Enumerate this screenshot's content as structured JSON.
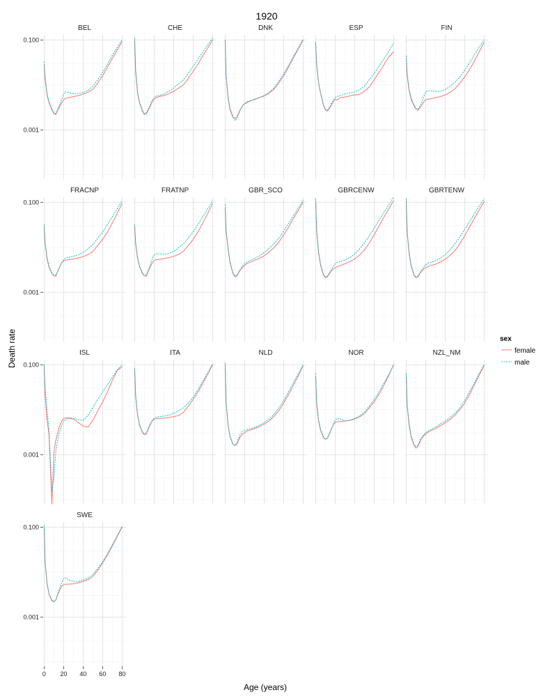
{
  "chart_data": {
    "type": "line",
    "title": "1920",
    "xlabel": "Age (years)",
    "ylabel": "Death rate",
    "yscale": "log10",
    "ylim": [
      8e-05,
      0.13
    ],
    "xlim": [
      -1,
      84
    ],
    "x_ticks": [
      0,
      20,
      40,
      60,
      80
    ],
    "x_tick_labels": [
      "0",
      "20",
      "40",
      "60",
      "80"
    ],
    "y_ticks": [
      0.001,
      0.1
    ],
    "y_tick_labels": [
      "0.001",
      "0.100"
    ],
    "grid": true,
    "legend": {
      "title": "sex",
      "position": "right",
      "entries": [
        {
          "label": "female",
          "color": "#F8766D",
          "dash": "solid"
        },
        {
          "label": "male",
          "color": "#00BFC4",
          "dash": "dotted"
        }
      ]
    },
    "x_knots": [
      0,
      1,
      3,
      5,
      8,
      10,
      12,
      15,
      18,
      20,
      22,
      25,
      30,
      35,
      40,
      45,
      50,
      55,
      60,
      65,
      70,
      75,
      80
    ],
    "panels": [
      {
        "name": "BEL",
        "female": [
          0.028,
          0.013,
          0.006,
          0.004,
          0.0028,
          0.0023,
          0.0022,
          0.003,
          0.004,
          0.0047,
          0.005,
          0.0052,
          0.0055,
          0.0058,
          0.0062,
          0.0069,
          0.008,
          0.011,
          0.016,
          0.025,
          0.039,
          0.06,
          0.092
        ],
        "male": [
          0.033,
          0.015,
          0.0065,
          0.0042,
          0.0029,
          0.0024,
          0.0023,
          0.0032,
          0.0048,
          0.0062,
          0.007,
          0.0068,
          0.0063,
          0.0064,
          0.0068,
          0.0075,
          0.0095,
          0.013,
          0.019,
          0.029,
          0.046,
          0.068,
          0.1
        ]
      },
      {
        "name": "CHE",
        "female": [
          0.1,
          0.02,
          0.0065,
          0.004,
          0.0026,
          0.0022,
          0.0023,
          0.003,
          0.0042,
          0.0048,
          0.0052,
          0.0055,
          0.0058,
          0.0064,
          0.0072,
          0.0085,
          0.01,
          0.014,
          0.02,
          0.029,
          0.045,
          0.066,
          0.1
        ],
        "male": [
          0.11,
          0.022,
          0.007,
          0.0042,
          0.0027,
          0.0023,
          0.0024,
          0.0032,
          0.0045,
          0.0052,
          0.0056,
          0.0058,
          0.0063,
          0.0072,
          0.0085,
          0.0105,
          0.013,
          0.018,
          0.026,
          0.037,
          0.055,
          0.078,
          0.11
        ]
      },
      {
        "name": "DNK",
        "female": [
          0.1,
          0.015,
          0.005,
          0.0028,
          0.0019,
          0.0018,
          0.0019,
          0.0027,
          0.0035,
          0.0038,
          0.004,
          0.0043,
          0.0048,
          0.0052,
          0.0057,
          0.0065,
          0.008,
          0.011,
          0.016,
          0.025,
          0.04,
          0.063,
          0.1
        ],
        "male": [
          0.1,
          0.016,
          0.0054,
          0.003,
          0.002,
          0.0016,
          0.0018,
          0.0026,
          0.0035,
          0.0039,
          0.0042,
          0.0044,
          0.0047,
          0.0052,
          0.0058,
          0.0068,
          0.0085,
          0.012,
          0.018,
          0.027,
          0.043,
          0.067,
          0.105
        ]
      },
      {
        "name": "ESP",
        "female": [
          0.085,
          0.028,
          0.011,
          0.0065,
          0.0035,
          0.0028,
          0.0026,
          0.0032,
          0.0042,
          0.0048,
          0.0046,
          0.0052,
          0.0054,
          0.0057,
          0.006,
          0.0062,
          0.0072,
          0.009,
          0.013,
          0.019,
          0.028,
          0.042,
          0.055
        ],
        "male": [
          0.09,
          0.03,
          0.011,
          0.0068,
          0.0036,
          0.0029,
          0.0027,
          0.0034,
          0.0046,
          0.0052,
          0.0055,
          0.0058,
          0.0063,
          0.0066,
          0.007,
          0.0078,
          0.0095,
          0.013,
          0.018,
          0.026,
          0.038,
          0.056,
          0.085
        ]
      },
      {
        "name": "FIN",
        "female": [
          0.04,
          0.016,
          0.0075,
          0.0048,
          0.0034,
          0.0029,
          0.0027,
          0.0033,
          0.0042,
          0.0047,
          0.0048,
          0.0049,
          0.0052,
          0.0055,
          0.006,
          0.0068,
          0.0082,
          0.011,
          0.015,
          0.022,
          0.034,
          0.055,
          0.09
        ],
        "male": [
          0.045,
          0.018,
          0.0082,
          0.0052,
          0.0036,
          0.003,
          0.0029,
          0.0036,
          0.0055,
          0.0068,
          0.0074,
          0.0074,
          0.0072,
          0.0072,
          0.0079,
          0.0092,
          0.0115,
          0.015,
          0.021,
          0.031,
          0.047,
          0.07,
          0.1
        ]
      },
      {
        "name": "FRACNP",
        "female": [
          0.03,
          0.012,
          0.0055,
          0.0036,
          0.0026,
          0.0023,
          0.0023,
          0.0033,
          0.0045,
          0.005,
          0.0052,
          0.0053,
          0.0055,
          0.0058,
          0.0062,
          0.0069,
          0.008,
          0.011,
          0.015,
          0.022,
          0.035,
          0.057,
          0.095
        ],
        "male": [
          0.033,
          0.013,
          0.006,
          0.0038,
          0.0027,
          0.0024,
          0.0024,
          0.0033,
          0.0045,
          0.0052,
          0.0058,
          0.006,
          0.0063,
          0.0068,
          0.0077,
          0.0092,
          0.0115,
          0.016,
          0.022,
          0.032,
          0.048,
          0.072,
          0.11
        ]
      },
      {
        "name": "FRATNP",
        "female": [
          0.03,
          0.012,
          0.0056,
          0.0037,
          0.0026,
          0.0023,
          0.0023,
          0.0033,
          0.0045,
          0.0051,
          0.0053,
          0.0054,
          0.0056,
          0.0059,
          0.0063,
          0.007,
          0.0082,
          0.011,
          0.015,
          0.022,
          0.035,
          0.057,
          0.095
        ],
        "male": [
          0.033,
          0.013,
          0.006,
          0.0038,
          0.0027,
          0.0024,
          0.0024,
          0.0035,
          0.0055,
          0.0068,
          0.0072,
          0.0072,
          0.007,
          0.0073,
          0.0082,
          0.0097,
          0.012,
          0.016,
          0.022,
          0.032,
          0.048,
          0.072,
          0.11
        ]
      },
      {
        "name": "GBR_SCO",
        "female": [
          0.075,
          0.022,
          0.009,
          0.0045,
          0.0026,
          0.0022,
          0.0023,
          0.003,
          0.0036,
          0.004,
          0.0043,
          0.0046,
          0.0051,
          0.0057,
          0.0065,
          0.0078,
          0.0098,
          0.013,
          0.019,
          0.028,
          0.044,
          0.066,
          0.1
        ],
        "male": [
          0.09,
          0.025,
          0.0098,
          0.0048,
          0.0027,
          0.0023,
          0.0024,
          0.0031,
          0.0039,
          0.0043,
          0.0046,
          0.005,
          0.0056,
          0.0064,
          0.0076,
          0.0094,
          0.012,
          0.016,
          0.023,
          0.034,
          0.051,
          0.075,
          0.11
        ]
      },
      {
        "name": "GBRCENW",
        "female": [
          0.11,
          0.022,
          0.0075,
          0.004,
          0.0024,
          0.0021,
          0.0022,
          0.0028,
          0.0033,
          0.0035,
          0.0037,
          0.0039,
          0.0043,
          0.0048,
          0.0055,
          0.0067,
          0.0087,
          0.0125,
          0.019,
          0.03,
          0.047,
          0.072,
          0.11
        ],
        "male": [
          0.12,
          0.025,
          0.008,
          0.0042,
          0.0025,
          0.0022,
          0.0023,
          0.0029,
          0.0037,
          0.0043,
          0.0046,
          0.0048,
          0.0052,
          0.0059,
          0.0071,
          0.0092,
          0.0125,
          0.018,
          0.027,
          0.04,
          0.06,
          0.088,
          0.13
        ]
      },
      {
        "name": "GBRTENW",
        "female": [
          0.11,
          0.021,
          0.0072,
          0.0039,
          0.0024,
          0.0021,
          0.0022,
          0.0028,
          0.0033,
          0.0035,
          0.0037,
          0.0039,
          0.0042,
          0.0047,
          0.0054,
          0.0066,
          0.0085,
          0.012,
          0.018,
          0.028,
          0.044,
          0.068,
          0.105
        ],
        "male": [
          0.12,
          0.024,
          0.0078,
          0.0041,
          0.0025,
          0.0022,
          0.0023,
          0.0029,
          0.0036,
          0.0041,
          0.0044,
          0.0046,
          0.005,
          0.0057,
          0.0069,
          0.0088,
          0.012,
          0.017,
          0.025,
          0.037,
          0.056,
          0.083,
          0.12
        ]
      },
      {
        "name": "ISL",
        "female": [
          0.1,
          0.02,
          0.006,
          0.0028,
          8e-05,
          0.0011,
          0.0021,
          0.0038,
          0.0056,
          0.0063,
          0.0066,
          0.0064,
          0.0062,
          0.0052,
          0.0043,
          0.0041,
          0.0058,
          0.0095,
          0.015,
          0.025,
          0.045,
          0.075,
          0.09
        ],
        "male": [
          0.1,
          0.03,
          0.01,
          0.0035,
          0.00015,
          0.0003,
          0.0012,
          0.0028,
          0.0045,
          0.0055,
          0.006,
          0.0066,
          0.0065,
          0.006,
          0.0058,
          0.0075,
          0.011,
          0.017,
          0.025,
          0.036,
          0.053,
          0.077,
          0.1
        ]
      },
      {
        "name": "ITA",
        "female": [
          0.08,
          0.02,
          0.0075,
          0.0045,
          0.0031,
          0.0028,
          0.0029,
          0.0042,
          0.0056,
          0.0061,
          0.0063,
          0.0064,
          0.0065,
          0.0067,
          0.007,
          0.0074,
          0.0087,
          0.012,
          0.017,
          0.025,
          0.039,
          0.062,
          0.1
        ],
        "male": [
          0.085,
          0.021,
          0.008,
          0.0047,
          0.0032,
          0.0029,
          0.003,
          0.0044,
          0.0058,
          0.0065,
          0.0068,
          0.007,
          0.0072,
          0.0075,
          0.0083,
          0.0094,
          0.011,
          0.014,
          0.019,
          0.028,
          0.043,
          0.066,
          0.105
        ]
      },
      {
        "name": "NLD",
        "female": [
          0.1,
          0.014,
          0.0045,
          0.0025,
          0.0017,
          0.0016,
          0.0017,
          0.0024,
          0.0029,
          0.0031,
          0.0033,
          0.0035,
          0.0038,
          0.0042,
          0.0048,
          0.0056,
          0.0071,
          0.0095,
          0.014,
          0.022,
          0.035,
          0.057,
          0.095
        ],
        "male": [
          0.11,
          0.015,
          0.0047,
          0.0026,
          0.0017,
          0.0016,
          0.0018,
          0.0027,
          0.0033,
          0.0035,
          0.0036,
          0.0037,
          0.004,
          0.0045,
          0.0052,
          0.0062,
          0.0078,
          0.011,
          0.016,
          0.025,
          0.04,
          0.063,
          0.1
        ]
      },
      {
        "name": "NOR",
        "female": [
          0.055,
          0.013,
          0.0055,
          0.0035,
          0.0024,
          0.0022,
          0.0023,
          0.0033,
          0.0046,
          0.0052,
          0.0054,
          0.0055,
          0.0056,
          0.0058,
          0.0062,
          0.0069,
          0.0082,
          0.011,
          0.015,
          0.022,
          0.035,
          0.058,
          0.1
        ],
        "male": [
          0.065,
          0.015,
          0.006,
          0.0037,
          0.0025,
          0.0022,
          0.0023,
          0.0032,
          0.0047,
          0.0058,
          0.0064,
          0.0062,
          0.0057,
          0.0058,
          0.0064,
          0.0073,
          0.0088,
          0.012,
          0.017,
          0.025,
          0.039,
          0.061,
          0.1
        ]
      },
      {
        "name": "NZL_NM",
        "female": [
          0.06,
          0.012,
          0.0045,
          0.0025,
          0.0016,
          0.0014,
          0.0015,
          0.0021,
          0.0026,
          0.0029,
          0.0031,
          0.0034,
          0.0038,
          0.0044,
          0.0051,
          0.0061,
          0.0076,
          0.01,
          0.014,
          0.022,
          0.036,
          0.06,
          0.095
        ],
        "male": [
          0.065,
          0.013,
          0.005,
          0.0027,
          0.0017,
          0.0015,
          0.0016,
          0.0023,
          0.0028,
          0.0031,
          0.0033,
          0.0036,
          0.0041,
          0.0048,
          0.0056,
          0.0067,
          0.0084,
          0.011,
          0.016,
          0.025,
          0.04,
          0.065,
          0.1
        ]
      },
      {
        "name": "SWE",
        "female": [
          0.1,
          0.016,
          0.0055,
          0.0032,
          0.0023,
          0.0022,
          0.0024,
          0.0036,
          0.0049,
          0.0053,
          0.0054,
          0.0054,
          0.0055,
          0.0058,
          0.0062,
          0.0068,
          0.008,
          0.011,
          0.016,
          0.024,
          0.038,
          0.062,
          0.1
        ],
        "male": [
          0.11,
          0.017,
          0.0058,
          0.0033,
          0.0024,
          0.0022,
          0.0024,
          0.0038,
          0.0058,
          0.0072,
          0.0075,
          0.0068,
          0.0062,
          0.0062,
          0.0066,
          0.0074,
          0.0088,
          0.012,
          0.017,
          0.026,
          0.041,
          0.065,
          0.105
        ]
      }
    ]
  }
}
